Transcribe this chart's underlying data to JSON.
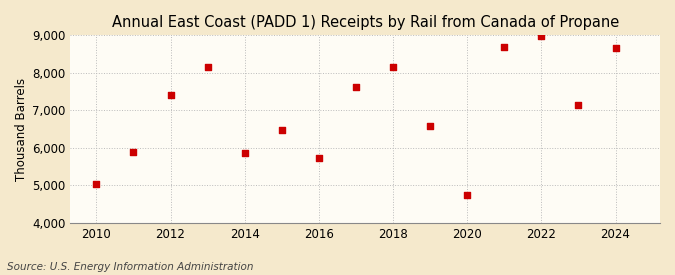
{
  "title": "Annual East Coast (PADD 1) Receipts by Rail from Canada of Propane",
  "ylabel": "Thousand Barrels",
  "source": "Source: U.S. Energy Information Administration",
  "years": [
    2010,
    2011,
    2012,
    2013,
    2014,
    2015,
    2016,
    2017,
    2018,
    2019,
    2020,
    2021,
    2022,
    2023,
    2024
  ],
  "values": [
    5050,
    5900,
    7400,
    8150,
    5850,
    6480,
    5720,
    7620,
    8150,
    6580,
    4750,
    8700,
    8980,
    7130,
    8670
  ],
  "marker_color": "#cc0000",
  "marker": "s",
  "marker_size": 5,
  "ylim": [
    4000,
    9000
  ],
  "yticks": [
    4000,
    5000,
    6000,
    7000,
    8000,
    9000
  ],
  "xticks": [
    2010,
    2012,
    2014,
    2016,
    2018,
    2020,
    2022,
    2024
  ],
  "outer_bg": "#f5e9cc",
  "inner_bg": "#fefcf5",
  "grid_color": "#bbbbbb",
  "title_fontsize": 10.5,
  "axis_fontsize": 8.5,
  "source_fontsize": 7.5
}
